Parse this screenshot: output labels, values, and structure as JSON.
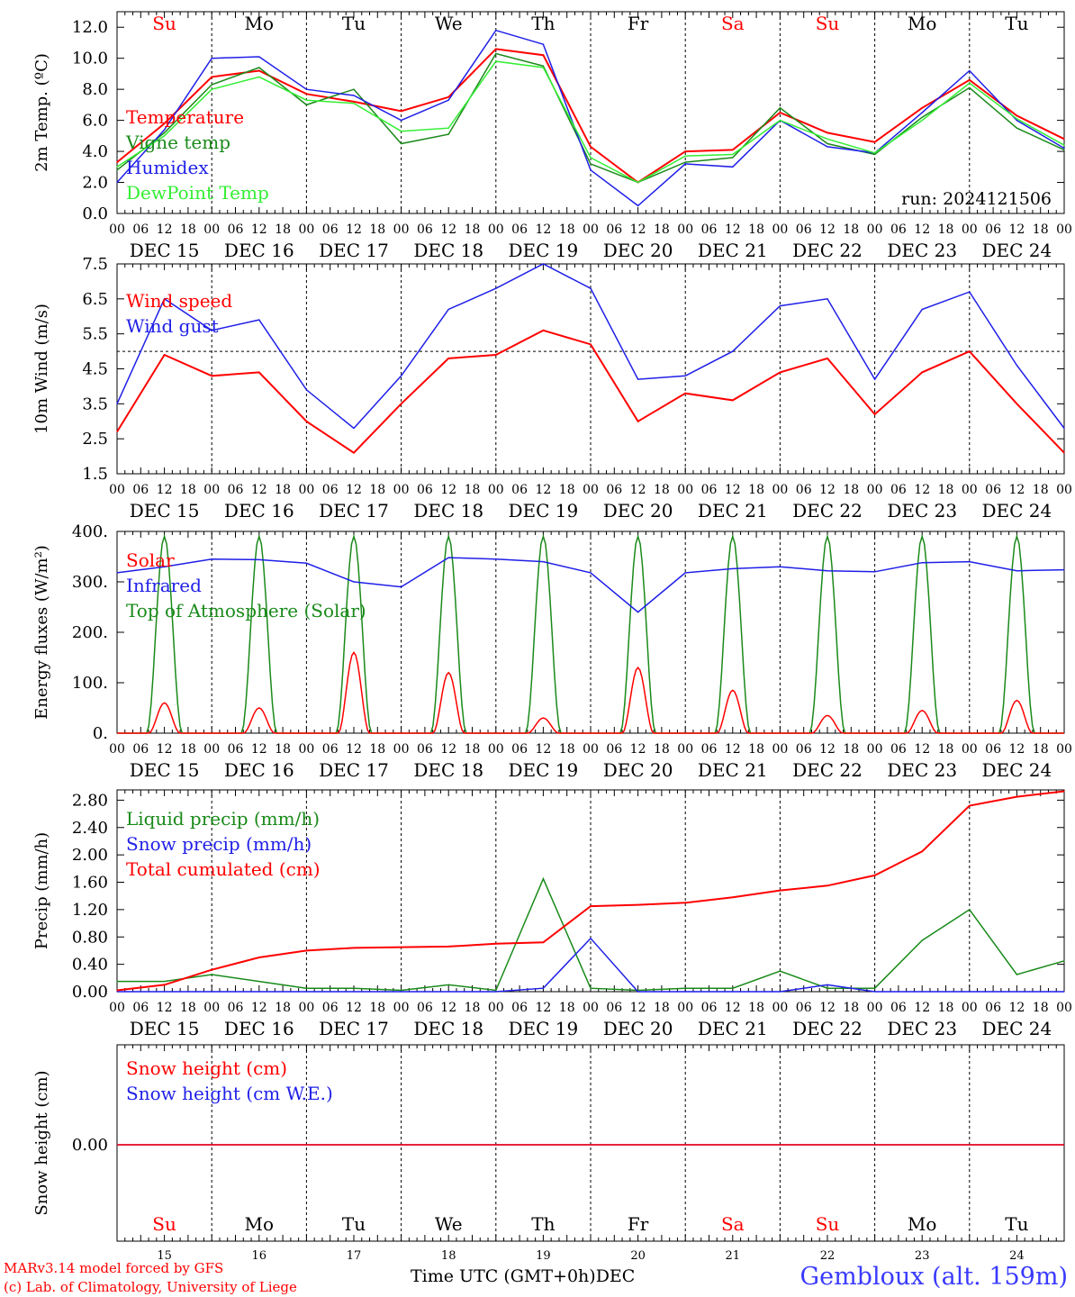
{
  "credits": {
    "line1": "MARv3.14 model forced by GFS",
    "line2": "(c) Lab. of Climatology, University of Liege"
  },
  "footer": {
    "time_label": "Time UTC (GMT+0h)",
    "month": "DEC",
    "station": "Gembloux (alt. 159m)"
  },
  "colors": {
    "red": "#ff0000",
    "green": "#1a8a1a",
    "blue": "#1f1fe8",
    "lightgreen": "#33ee33",
    "weekend": "#ff0000",
    "weekday": "#000000"
  },
  "chart_data": [
    {
      "type": "line",
      "ylabel": "2m Temp. (ºC)",
      "ylim": [
        0,
        13
      ],
      "yticks": [
        "0.0",
        "2.0",
        "4.0",
        "6.0",
        "8.0",
        "10.0",
        "12.0"
      ],
      "annotation": "run: 2024121506",
      "day_headers": [
        "Su",
        "Mo",
        "Tu",
        "We",
        "Th",
        "Fr",
        "Sa",
        "Su",
        "Mo",
        "Tu"
      ],
      "weekend_days": [
        0,
        6,
        7
      ],
      "date_labels": [
        "DEC 15",
        "DEC 16",
        "DEC 17",
        "DEC 18",
        "DEC 19",
        "DEC 20",
        "DEC 21",
        "DEC 22",
        "DEC 23",
        "DEC 24"
      ],
      "hour_ticks": [
        "00",
        "06",
        "12",
        "18"
      ],
      "x": [
        0,
        12,
        24,
        36,
        48,
        60,
        72,
        84,
        96,
        108,
        120,
        132,
        144,
        156,
        168,
        180,
        192,
        204,
        216,
        228,
        240
      ],
      "series": [
        {
          "name": "Temperature",
          "color": "red",
          "values": [
            3.3,
            5.8,
            8.8,
            9.2,
            7.7,
            7.2,
            6.6,
            7.5,
            10.6,
            10.2,
            4.3,
            2.0,
            4.0,
            4.1,
            6.5,
            5.2,
            4.6,
            6.8,
            8.6,
            6.3,
            4.8
          ]
        },
        {
          "name": "Vigne temp",
          "color": "green",
          "values": [
            2.8,
            5.2,
            8.3,
            9.4,
            7.0,
            8.0,
            4.5,
            5.1,
            10.3,
            9.5,
            3.2,
            2.0,
            3.3,
            3.6,
            6.8,
            4.5,
            3.8,
            6.2,
            8.1,
            5.5,
            4.1
          ]
        },
        {
          "name": "Humidex",
          "color": "blue",
          "values": [
            2.0,
            5.4,
            10.0,
            10.1,
            8.0,
            7.6,
            6.0,
            7.3,
            11.8,
            10.9,
            2.8,
            0.5,
            3.2,
            3.0,
            6.0,
            4.3,
            3.9,
            6.5,
            9.2,
            6.0,
            4.2
          ]
        },
        {
          "name": "DewPoint Temp",
          "color": "lightgreen",
          "values": [
            3.0,
            5.0,
            8.0,
            8.8,
            7.3,
            7.1,
            5.3,
            5.5,
            9.8,
            9.4,
            3.6,
            2.0,
            3.7,
            3.8,
            6.0,
            4.8,
            3.9,
            6.0,
            8.4,
            6.1,
            4.4
          ]
        }
      ]
    },
    {
      "type": "line",
      "ylabel": "10m Wind (m/s)",
      "ylim": [
        1.5,
        7.5
      ],
      "yticks": [
        "1.5",
        "2.5",
        "3.5",
        "4.5",
        "5.5",
        "6.5",
        "7.5"
      ],
      "reference_line": 5.0,
      "date_labels": [
        "DEC 15",
        "DEC 16",
        "DEC 17",
        "DEC 18",
        "DEC 19",
        "DEC 20",
        "DEC 21",
        "DEC 22",
        "DEC 23",
        "DEC 24"
      ],
      "hour_ticks": [
        "00",
        "06",
        "12",
        "18"
      ],
      "x": [
        0,
        12,
        24,
        36,
        48,
        60,
        72,
        84,
        96,
        108,
        120,
        132,
        144,
        156,
        168,
        180,
        192,
        204,
        216,
        228,
        240
      ],
      "series": [
        {
          "name": "Wind speed",
          "color": "red",
          "values": [
            2.7,
            4.9,
            4.3,
            4.4,
            3.0,
            2.1,
            3.5,
            4.8,
            4.9,
            5.6,
            5.2,
            3.0,
            3.8,
            3.6,
            4.4,
            4.8,
            3.2,
            4.4,
            5.0,
            3.5,
            2.1
          ]
        },
        {
          "name": "Wind gust",
          "color": "blue",
          "values": [
            3.5,
            6.5,
            5.6,
            5.9,
            3.9,
            2.8,
            4.3,
            6.2,
            6.8,
            7.5,
            6.8,
            4.2,
            4.3,
            5.0,
            6.3,
            6.5,
            4.2,
            6.2,
            6.7,
            4.6,
            2.8
          ]
        }
      ]
    },
    {
      "type": "line",
      "ylabel": "Energy fluxes (W/m²)",
      "ylim": [
        0,
        400
      ],
      "yticks": [
        "0.",
        "100.",
        "200.",
        "300.",
        "400."
      ],
      "date_labels": [
        "DEC 15",
        "DEC 16",
        "DEC 17",
        "DEC 18",
        "DEC 19",
        "DEC 20",
        "DEC 21",
        "DEC 22",
        "DEC 23",
        "DEC 24"
      ],
      "hour_ticks": [
        "00",
        "06",
        "12",
        "18"
      ],
      "daily_peaks": {
        "Solar": [
          60,
          50,
          160,
          120,
          30,
          130,
          85,
          35,
          45,
          65
        ],
        "Top of Atmosphere (Solar)": [
          390,
          390,
          390,
          390,
          390,
          390,
          390,
          390,
          390,
          390
        ]
      },
      "x": [
        0,
        12,
        24,
        36,
        48,
        60,
        72,
        84,
        96,
        108,
        120,
        132,
        144,
        156,
        168,
        180,
        192,
        204,
        216,
        228,
        240
      ],
      "series": [
        {
          "name": "Solar",
          "color": "red",
          "values": [
            0,
            60,
            0,
            50,
            0,
            160,
            0,
            120,
            0,
            30,
            0,
            130,
            0,
            85,
            0,
            35,
            0,
            45,
            0,
            65,
            0
          ]
        },
        {
          "name": "Infrared",
          "color": "blue",
          "values": [
            318,
            330,
            345,
            344,
            337,
            300,
            290,
            348,
            345,
            340,
            318,
            240,
            318,
            326,
            330,
            322,
            320,
            338,
            340,
            322,
            324
          ]
        },
        {
          "name": "Top of Atmosphere (Solar)",
          "color": "green",
          "values": [
            0,
            390,
            0,
            390,
            0,
            390,
            0,
            390,
            0,
            390,
            0,
            390,
            0,
            390,
            0,
            390,
            0,
            390,
            0,
            390,
            0
          ]
        }
      ]
    },
    {
      "type": "line",
      "ylabel": "Precip (mm/h)",
      "ylim": [
        0,
        2.95
      ],
      "yticks": [
        "0.00",
        "0.40",
        "0.80",
        "1.20",
        "1.60",
        "2.00",
        "2.40",
        "2.80"
      ],
      "date_labels": [
        "DEC 15",
        "DEC 16",
        "DEC 17",
        "DEC 18",
        "DEC 19",
        "DEC 20",
        "DEC 21",
        "DEC 22",
        "DEC 23",
        "DEC 24"
      ],
      "hour_ticks": [
        "00",
        "06",
        "12",
        "18"
      ],
      "x": [
        0,
        12,
        24,
        36,
        48,
        60,
        72,
        84,
        96,
        108,
        120,
        132,
        144,
        156,
        168,
        180,
        192,
        204,
        216,
        228,
        240
      ],
      "series": [
        {
          "name": "Liquid precip (mm/h)",
          "color": "green",
          "values": [
            0.15,
            0.15,
            0.25,
            0.15,
            0.05,
            0.05,
            0.02,
            0.1,
            0.02,
            1.65,
            0.05,
            0.02,
            0.05,
            0.05,
            0.3,
            0.05,
            0.05,
            0.75,
            1.2,
            0.25,
            0.45
          ]
        },
        {
          "name": "Snow precip (mm/h)",
          "color": "blue",
          "values": [
            0,
            0,
            0,
            0,
            0,
            0,
            0,
            0,
            0,
            0.05,
            0.78,
            0,
            0,
            0,
            0,
            0.1,
            0,
            0,
            0,
            0,
            0
          ]
        },
        {
          "name": "Total cumulated (cm)",
          "color": "red",
          "values": [
            0.02,
            0.1,
            0.32,
            0.5,
            0.6,
            0.64,
            0.65,
            0.66,
            0.7,
            0.72,
            1.25,
            1.27,
            1.3,
            1.38,
            1.48,
            1.55,
            1.7,
            2.05,
            2.72,
            2.85,
            2.93
          ]
        }
      ]
    },
    {
      "type": "line",
      "ylabel": "Snow height (cm)",
      "yticks": [
        "0.00"
      ],
      "day_footers": [
        "Su",
        "Mo",
        "Tu",
        "We",
        "Th",
        "Fr",
        "Sa",
        "Su",
        "Mo",
        "Tu"
      ],
      "weekend_days": [
        0,
        6,
        7
      ],
      "day_numbers": [
        "15",
        "16",
        "17",
        "18",
        "19",
        "20",
        "21",
        "22",
        "23",
        "24"
      ],
      "series": [
        {
          "name": "Snow height (cm)",
          "color": "red",
          "values": [
            0,
            0
          ]
        },
        {
          "name": "Snow height (cm W.E.)",
          "color": "blue",
          "values": [
            0,
            0
          ]
        }
      ]
    }
  ]
}
